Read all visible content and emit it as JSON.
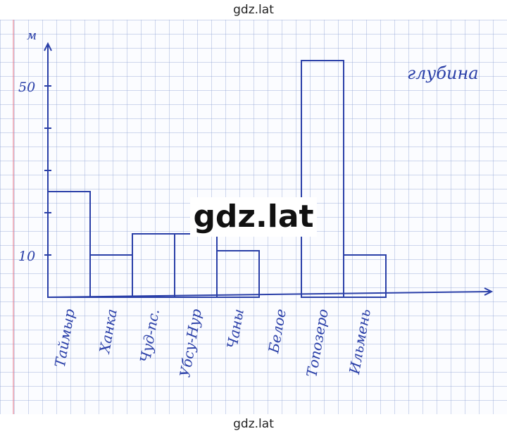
{
  "watermark": {
    "top": "gdz.lat",
    "bottom": "gdz.lat",
    "center": "gdz.lat"
  },
  "colors": {
    "ink": "#2a3fa8",
    "grid": "#96aad7"
  },
  "chart_data": {
    "type": "bar",
    "title": "глубина",
    "ylabel": "м",
    "categories": [
      "Таймыр",
      "Ханка",
      "Чуд-пс.",
      "Убсу-Нур",
      "Чаны",
      "Белое",
      "Топозеро",
      "Ильмень"
    ],
    "values": [
      25,
      10,
      15,
      15,
      11,
      0,
      56,
      10
    ],
    "ylim": [
      0,
      60
    ],
    "ytick_labels": [
      {
        "value": 10,
        "label": "10"
      },
      {
        "value": 50,
        "label": "50"
      }
    ],
    "grid": true
  }
}
